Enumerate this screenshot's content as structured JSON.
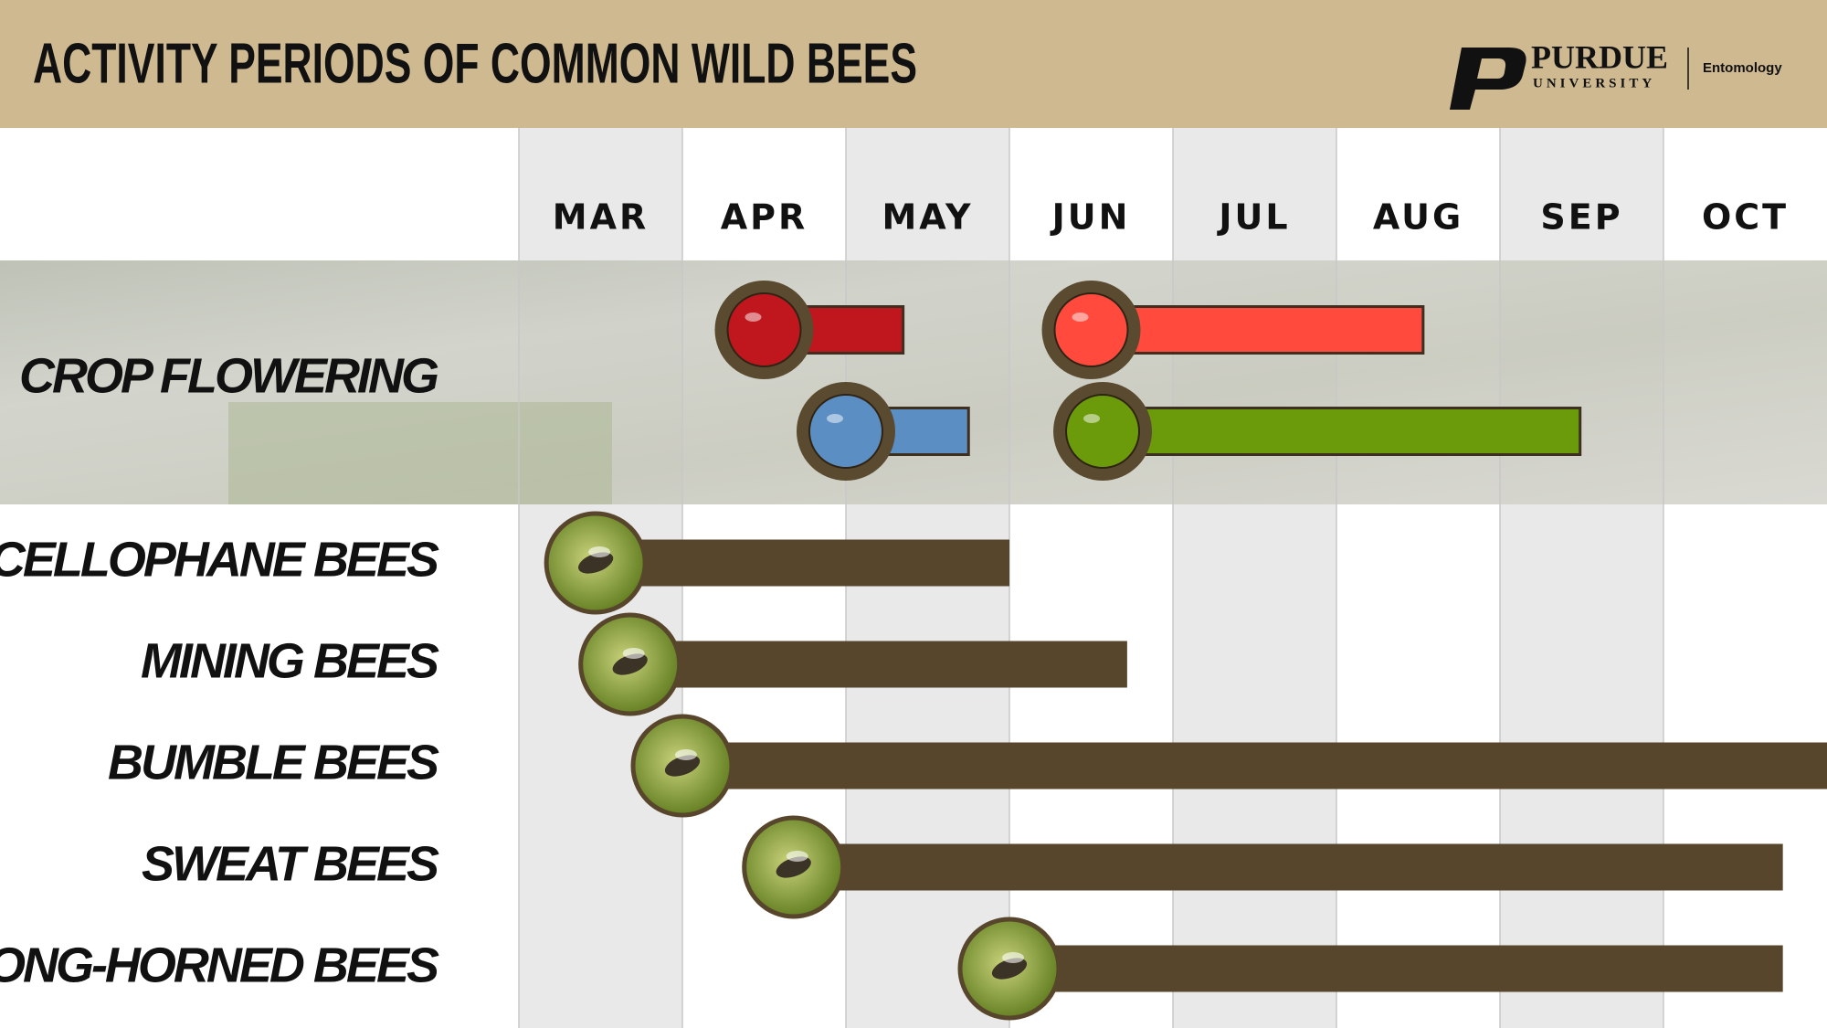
{
  "chart_data": {
    "type": "gantt",
    "title": "ACTIVITY PERIODS OF COMMON WILD BEES",
    "categories": [
      "MAR",
      "APR",
      "MAY",
      "JUN",
      "JUL",
      "AUG",
      "SEP",
      "OCT"
    ],
    "xlim": [
      3,
      11
    ],
    "crop_label": "CROP FLOWERING",
    "crops": [
      {
        "color": "#c0161e",
        "start": 4.5,
        "end": 5.35
      },
      {
        "color": "#ff4a3d",
        "start": 6.5,
        "end": 8.53
      },
      {
        "color": "#5b8fc4",
        "start": 5.0,
        "end": 5.75
      },
      {
        "color": "#6b9a0a",
        "start": 6.57,
        "end": 9.49
      }
    ],
    "series": [
      {
        "name": "CELLOPHANE BEES",
        "color": "#58462c",
        "start": 3.47,
        "end": 6.0
      },
      {
        "name": "MINING BEES",
        "color": "#58462c",
        "start": 3.68,
        "end": 6.72
      },
      {
        "name": "BUMBLE BEES",
        "color": "#58462c",
        "start": 4.0,
        "end": 11.0
      },
      {
        "name": "SWEAT BEES",
        "color": "#58462c",
        "start": 4.68,
        "end": 10.73
      },
      {
        "name": "LONG-HORNED BEES",
        "color": "#58462c",
        "start": 6.0,
        "end": 10.73
      }
    ]
  },
  "branding": {
    "name": "PURDUE",
    "sub": "UNIVERSITY",
    "dept": "Entomology"
  }
}
